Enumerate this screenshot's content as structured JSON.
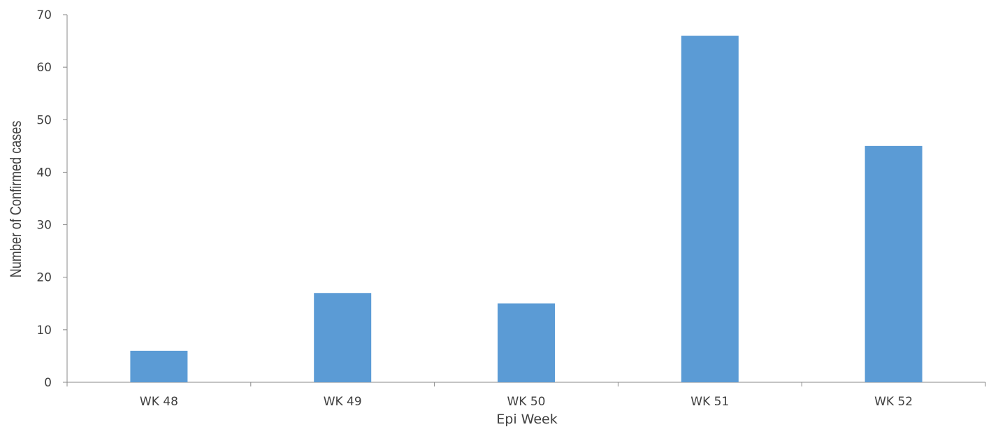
{
  "chart_data": {
    "type": "bar",
    "categories": [
      "WK 48",
      "WK 49",
      "WK 50",
      "WK 51",
      "WK 52"
    ],
    "series": [
      {
        "values": [
          6,
          17,
          15,
          66,
          45
        ],
        "color": "#5b9bd5"
      }
    ],
    "xlabel": "Epi Week",
    "ylabel": "Number of Confirmed cases",
    "ylim": [
      0,
      70
    ],
    "yticks": [
      "0",
      "10",
      "20",
      "30",
      "40",
      "50",
      "60",
      "70"
    ],
    "grid": false,
    "legend": "none"
  }
}
